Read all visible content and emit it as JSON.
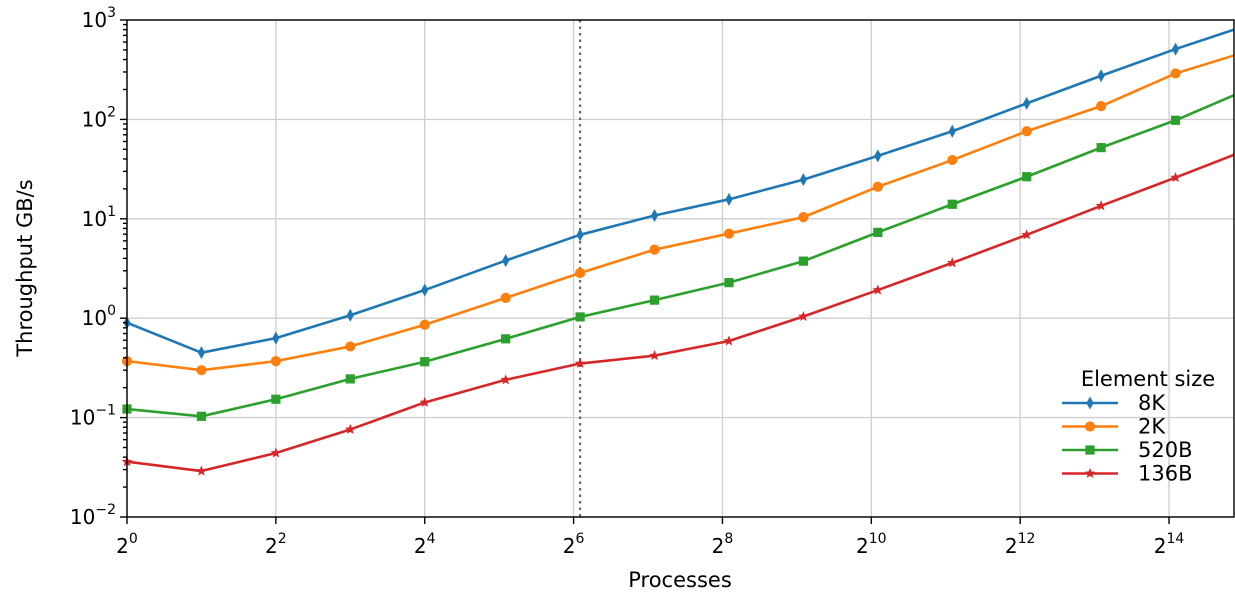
{
  "chart_data": {
    "type": "line",
    "xlabel": "Processes",
    "ylabel": "Throughput GB/s",
    "x_scale": "log2",
    "y_scale": "log10",
    "xlim": [
      1,
      30000
    ],
    "ylim": [
      0.01,
      1000
    ],
    "grid": true,
    "x_ticks": [
      {
        "value": 1,
        "base": "2",
        "exp": "0"
      },
      {
        "value": 4,
        "base": "2",
        "exp": "2"
      },
      {
        "value": 16,
        "base": "2",
        "exp": "4"
      },
      {
        "value": 64,
        "base": "2",
        "exp": "6"
      },
      {
        "value": 256,
        "base": "2",
        "exp": "8"
      },
      {
        "value": 1024,
        "base": "2",
        "exp": "10"
      },
      {
        "value": 4096,
        "base": "2",
        "exp": "12"
      },
      {
        "value": 16384,
        "base": "2",
        "exp": "14"
      }
    ],
    "y_ticks": [
      {
        "value": 0.01,
        "base": "10",
        "exp": "−2"
      },
      {
        "value": 0.1,
        "base": "10",
        "exp": "−1"
      },
      {
        "value": 1,
        "base": "10",
        "exp": "0"
      },
      {
        "value": 10,
        "base": "10",
        "exp": "1"
      },
      {
        "value": 100,
        "base": "10",
        "exp": "2"
      },
      {
        "value": 1000,
        "base": "10",
        "exp": "3"
      }
    ],
    "vertical_reference_line": {
      "x": 68,
      "style": "dotted"
    },
    "legend": {
      "title": "Element size",
      "position": "lower-right"
    },
    "x": [
      1,
      2,
      4,
      8,
      16,
      34,
      68,
      136,
      272,
      544,
      1088,
      2176,
      4352,
      8704,
      17408,
      30000
    ],
    "series": [
      {
        "name": "8K",
        "color": "#1f77b4",
        "marker": "thin_diamond",
        "values": [
          0.9,
          0.45,
          0.63,
          1.07,
          1.92,
          3.8,
          6.9,
          10.8,
          15.7,
          24.8,
          43,
          76,
          145,
          275,
          510,
          800
        ]
      },
      {
        "name": "2K",
        "color": "#ff7f0e",
        "marker": "circle",
        "values": [
          0.37,
          0.3,
          0.37,
          0.52,
          0.86,
          1.6,
          2.85,
          4.9,
          7.1,
          10.4,
          21,
          39,
          76,
          136,
          290,
          440
        ]
      },
      {
        "name": "520B",
        "color": "#2ca02c",
        "marker": "square",
        "values": [
          0.122,
          0.103,
          0.153,
          0.245,
          0.365,
          0.62,
          1.03,
          1.52,
          2.28,
          3.75,
          7.3,
          14,
          26.5,
          52,
          98,
          175
        ]
      },
      {
        "name": "136B",
        "color": "#d62728",
        "marker": "star",
        "values": [
          0.036,
          0.029,
          0.044,
          0.076,
          0.142,
          0.24,
          0.35,
          0.42,
          0.59,
          1.04,
          1.92,
          3.6,
          6.9,
          13.5,
          26,
          44
        ]
      }
    ]
  }
}
